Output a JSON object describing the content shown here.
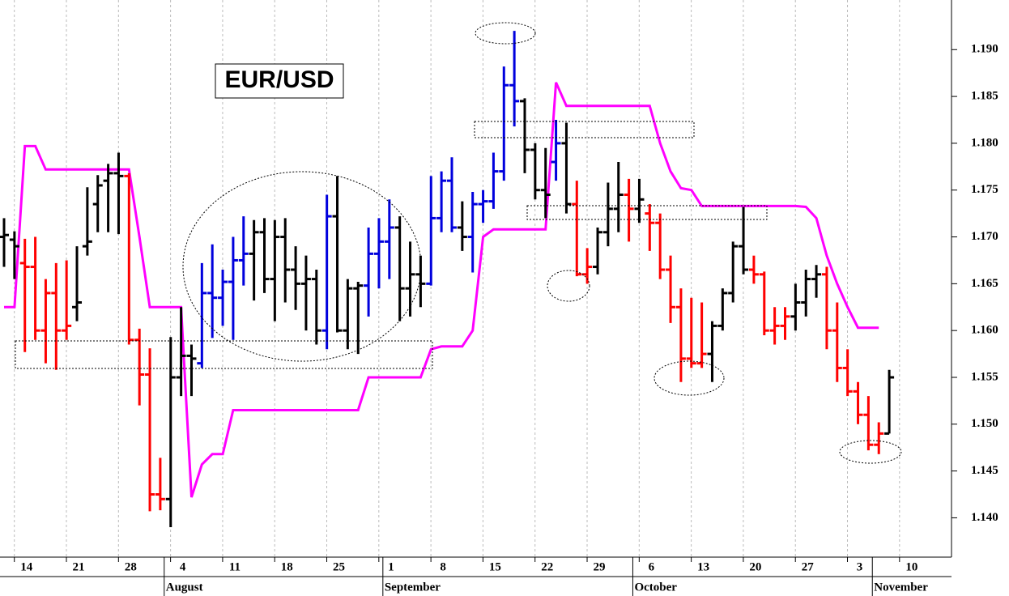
{
  "chart_data": {
    "type": "ohlc",
    "title": "EUR/USD",
    "categories": [
      null,
      null,
      "14",
      null,
      null,
      null,
      null,
      "21",
      null,
      null,
      null,
      null,
      "28",
      null,
      null,
      null,
      null,
      "4",
      null,
      null,
      null,
      null,
      "11",
      null,
      null,
      null,
      null,
      "18",
      null,
      null,
      null,
      null,
      "25",
      null,
      null,
      null,
      null,
      "1",
      null,
      null,
      null,
      null,
      "8",
      null,
      null,
      null,
      null,
      "15",
      null,
      null,
      null,
      null,
      "22",
      null,
      null,
      null,
      null,
      "29",
      null,
      null,
      null,
      null,
      "6",
      null,
      null,
      null,
      null,
      "13",
      null,
      null,
      null,
      null,
      "20",
      null,
      null,
      null,
      null,
      "27",
      null,
      null,
      null,
      null,
      "3",
      null,
      null,
      null,
      null,
      "10"
    ],
    "category_groups": [
      null,
      null,
      null,
      null,
      null,
      null,
      null,
      null,
      null,
      null,
      null,
      null,
      null,
      null,
      null,
      null,
      "August",
      null,
      null,
      null,
      null,
      null,
      null,
      null,
      null,
      null,
      null,
      null,
      null,
      null,
      null,
      null,
      null,
      null,
      null,
      null,
      null,
      "September",
      null,
      null,
      null,
      null,
      null,
      null,
      null,
      null,
      null,
      null,
      null,
      null,
      null,
      null,
      null,
      null,
      null,
      null,
      null,
      null,
      null,
      null,
      null,
      "October",
      null,
      null,
      null,
      null,
      null,
      null,
      null,
      null,
      null,
      null,
      null,
      null,
      null,
      null,
      null,
      null,
      null,
      null,
      null,
      null,
      null,
      null,
      "November",
      null,
      null,
      null,
      null,
      null
    ],
    "ohlc": [
      [
        1.17,
        1.172,
        1.1668,
        1.1702
      ],
      [
        1.1697,
        1.1706,
        1.1655,
        1.169
      ],
      [
        1.1672,
        1.1698,
        1.1577,
        1.1668
      ],
      [
        1.1668,
        1.17,
        1.159,
        1.16
      ],
      [
        1.16,
        1.1655,
        1.1565,
        1.164
      ],
      [
        1.164,
        1.1672,
        1.1558,
        1.16
      ],
      [
        1.16,
        1.1675,
        1.159,
        1.1605
      ],
      [
        1.1625,
        1.169,
        1.161,
        1.163
      ],
      [
        1.169,
        1.1753,
        1.168,
        1.1695
      ],
      [
        1.1735,
        1.1766,
        1.1705,
        1.1755
      ],
      [
        1.176,
        1.1778,
        1.1705,
        1.1768
      ],
      [
        1.1768,
        1.179,
        1.1703,
        1.1765
      ],
      [
        1.1765,
        1.1768,
        1.1585,
        1.159
      ],
      [
        1.159,
        1.1602,
        1.152,
        1.1553
      ],
      [
        1.1553,
        1.1581,
        1.1407,
        1.1425
      ],
      [
        1.1425,
        1.1464,
        1.1408,
        1.142
      ],
      [
        1.142,
        1.1593,
        1.139,
        1.155
      ],
      [
        1.155,
        1.1625,
        1.153,
        1.1573
      ],
      [
        1.1573,
        1.1585,
        1.153,
        1.157
      ],
      [
        1.1565,
        1.1672,
        1.156,
        1.164
      ],
      [
        1.164,
        1.1692,
        1.1592,
        1.1635
      ],
      [
        1.1635,
        1.1665,
        1.1605,
        1.1652
      ],
      [
        1.1652,
        1.17,
        1.159,
        1.1675
      ],
      [
        1.1675,
        1.1722,
        1.1648,
        1.1682
      ],
      [
        1.1682,
        1.1718,
        1.1632,
        1.1705
      ],
      [
        1.1705,
        1.172,
        1.164,
        1.1655
      ],
      [
        1.1655,
        1.1718,
        1.161,
        1.17
      ],
      [
        1.17,
        1.172,
        1.163,
        1.1665
      ],
      [
        1.1665,
        1.169,
        1.1622,
        1.165
      ],
      [
        1.165,
        1.168,
        1.16,
        1.1655
      ],
      [
        1.1655,
        1.1665,
        1.1585,
        1.16
      ],
      [
        1.16,
        1.1745,
        1.158,
        1.1722
      ],
      [
        1.1722,
        1.1765,
        1.1598,
        1.16
      ],
      [
        1.16,
        1.1655,
        1.158,
        1.1645
      ],
      [
        1.1645,
        1.1652,
        1.1575,
        1.1648
      ],
      [
        1.1648,
        1.171,
        1.1615,
        1.1682
      ],
      [
        1.1682,
        1.172,
        1.1645,
        1.1695
      ],
      [
        1.1695,
        1.174,
        1.1655,
        1.171
      ],
      [
        1.171,
        1.1722,
        1.161,
        1.1645
      ],
      [
        1.1645,
        1.1695,
        1.1615,
        1.166
      ],
      [
        1.166,
        1.168,
        1.1625,
        1.165
      ],
      [
        1.165,
        1.1765,
        1.1648,
        1.172
      ],
      [
        1.172,
        1.177,
        1.1705,
        1.176
      ],
      [
        1.176,
        1.1785,
        1.1705,
        1.171
      ],
      [
        1.171,
        1.1738,
        1.1685,
        1.17
      ],
      [
        1.17,
        1.1748,
        1.1662,
        1.1735
      ],
      [
        1.1735,
        1.175,
        1.1715,
        1.1738
      ],
      [
        1.1738,
        1.179,
        1.173,
        1.177
      ],
      [
        1.177,
        1.1882,
        1.176,
        1.1862
      ],
      [
        1.1862,
        1.192,
        1.1818,
        1.1845
      ],
      [
        1.1845,
        1.1848,
        1.1768,
        1.1793
      ],
      [
        1.1793,
        1.18,
        1.174,
        1.175
      ],
      [
        1.175,
        1.1795,
        1.172,
        1.1745
      ],
      [
        1.178,
        1.1825,
        1.176,
        1.18
      ],
      [
        1.18,
        1.1822,
        1.1725,
        1.1735
      ],
      [
        1.1735,
        1.176,
        1.1658,
        1.166
      ],
      [
        1.166,
        1.1688,
        1.165,
        1.1668
      ],
      [
        1.1668,
        1.171,
        1.166,
        1.1705
      ],
      [
        1.1705,
        1.1758,
        1.169,
        1.173
      ],
      [
        1.173,
        1.178,
        1.1705,
        1.1745
      ],
      [
        1.1745,
        1.1762,
        1.1695,
        1.173
      ],
      [
        1.173,
        1.1762,
        1.1715,
        1.174
      ],
      [
        1.1725,
        1.1735,
        1.1685,
        1.1715
      ],
      [
        1.1715,
        1.1725,
        1.1655,
        1.1665
      ],
      [
        1.1665,
        1.168,
        1.1608,
        1.1625
      ],
      [
        1.1625,
        1.1645,
        1.1545,
        1.157
      ],
      [
        1.157,
        1.1635,
        1.156,
        1.1565
      ],
      [
        1.1565,
        1.163,
        1.156,
        1.1575
      ],
      [
        1.1575,
        1.161,
        1.1545,
        1.1605
      ],
      [
        1.1605,
        1.1645,
        1.16,
        1.164
      ],
      [
        1.164,
        1.1695,
        1.163,
        1.169
      ],
      [
        1.169,
        1.1732,
        1.166,
        1.1665
      ],
      [
        1.1665,
        1.168,
        1.165,
        1.166
      ],
      [
        1.166,
        1.1663,
        1.1595,
        1.16
      ],
      [
        1.16,
        1.1625,
        1.1585,
        1.1605
      ],
      [
        1.1605,
        1.1625,
        1.159,
        1.1615
      ],
      [
        1.1615,
        1.165,
        1.16,
        1.163
      ],
      [
        1.163,
        1.1665,
        1.1615,
        1.1655
      ],
      [
        1.1655,
        1.167,
        1.1635,
        1.166
      ],
      [
        1.166,
        1.1668,
        1.158,
        1.16
      ],
      [
        1.16,
        1.163,
        1.1545,
        1.156
      ],
      [
        1.156,
        1.158,
        1.153,
        1.1535
      ],
      [
        1.1535,
        1.1545,
        1.15,
        1.151
      ],
      [
        1.151,
        1.153,
        1.1472,
        1.1478
      ],
      [
        1.1478,
        1.1502,
        1.1468,
        1.149
      ],
      [
        1.149,
        1.1558,
        1.149,
        1.155
      ],
      null,
      null
    ],
    "bar_colors": [
      "#000000",
      "#000000",
      "#ff0000",
      "#ff0000",
      "#ff0000",
      "#ff0000",
      "#ff0000",
      "#000000",
      "#000000",
      "#000000",
      "#000000",
      "#000000",
      "#ff0000",
      "#ff0000",
      "#ff0000",
      "#ff0000",
      "#000000",
      "#000000",
      "#000000",
      "#0000dd",
      "#0000dd",
      "#0000dd",
      "#0000dd",
      "#0000dd",
      "#000000",
      "#000000",
      "#000000",
      "#000000",
      "#000000",
      "#000000",
      "#000000",
      "#0000dd",
      "#000000",
      "#000000",
      "#000000",
      "#0000dd",
      "#0000dd",
      "#0000dd",
      "#000000",
      "#000000",
      "#000000",
      "#0000dd",
      "#0000dd",
      "#0000dd",
      "#000000",
      "#0000dd",
      "#0000dd",
      "#0000dd",
      "#0000dd",
      "#0000dd",
      "#000000",
      "#000000",
      "#000000",
      "#0000dd",
      "#000000",
      "#ff0000",
      "#ff0000",
      "#000000",
      "#000000",
      "#000000",
      "#ff0000",
      "#000000",
      "#ff0000",
      "#ff0000",
      "#ff0000",
      "#ff0000",
      "#ff0000",
      "#ff0000",
      "#000000",
      "#000000",
      "#000000",
      "#000000",
      "#ff0000",
      "#ff0000",
      "#ff0000",
      "#ff0000",
      "#000000",
      "#000000",
      "#000000",
      "#ff0000",
      "#ff0000",
      "#ff0000",
      "#ff0000",
      "#ff0000",
      "#ff0000",
      "#000000",
      null,
      null
    ],
    "line": {
      "color": "#ff00ff",
      "values": [
        1.1625,
        1.1625,
        1.1797,
        1.1797,
        1.1772,
        1.1772,
        1.1772,
        1.1772,
        1.1772,
        1.1772,
        1.1772,
        1.1772,
        1.1772,
        1.17,
        1.1625,
        1.1625,
        1.1625,
        1.1625,
        1.1422,
        1.1457,
        1.1468,
        1.1468,
        1.1515,
        1.1515,
        1.1515,
        1.1515,
        1.1515,
        1.1515,
        1.1515,
        1.1515,
        1.1515,
        1.1515,
        1.1515,
        1.1515,
        1.1515,
        1.155,
        1.155,
        1.155,
        1.155,
        1.155,
        1.155,
        1.158,
        1.1583,
        1.1583,
        1.1583,
        1.16,
        1.17,
        1.1708,
        1.1708,
        1.1708,
        1.1708,
        1.1708,
        1.1708,
        1.1865,
        1.184,
        1.184,
        1.184,
        1.184,
        1.184,
        1.184,
        1.184,
        1.184,
        1.184,
        1.18,
        1.177,
        1.1752,
        1.175,
        1.1733,
        1.1733,
        1.1733,
        1.1733,
        1.1733,
        1.1733,
        1.1733,
        1.1733,
        1.1733,
        1.1733,
        1.1732,
        1.172,
        1.168,
        1.165,
        1.1625,
        1.1603,
        1.1603,
        1.1603,
        null,
        null,
        null
      ]
    },
    "ylim": [
      1.1358,
      1.1953
    ],
    "yticks": [
      {
        "value": 1.14,
        "label": "1.140"
      },
      1.145,
      {
        "value": 1.15,
        "label": "1.150"
      },
      1.155,
      {
        "value": 1.16,
        "label": "1.160"
      },
      1.165,
      {
        "value": 1.17,
        "label": "1.170"
      },
      1.175,
      {
        "value": 1.18,
        "label": "1.180"
      },
      1.185,
      {
        "value": 1.19,
        "label": "1.190"
      }
    ],
    "grid": true
  }
}
